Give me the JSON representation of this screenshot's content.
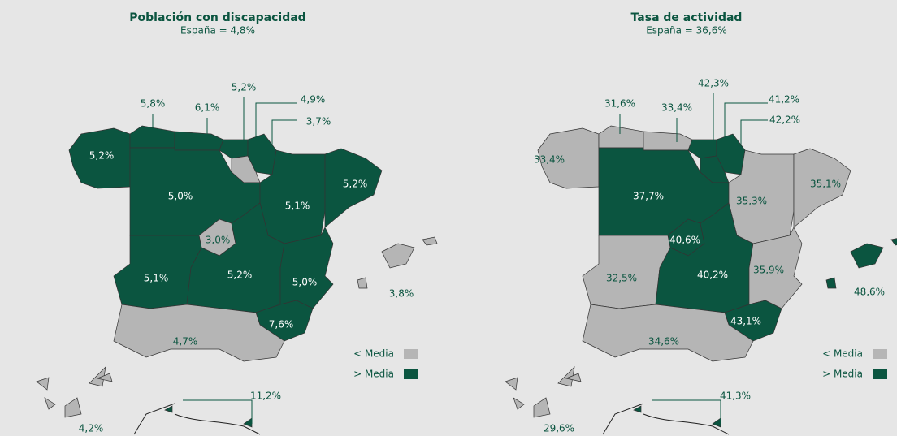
{
  "maps": [
    {
      "title": "Población con discapacidad",
      "subtitle": "España = 4,8%",
      "legend": [
        {
          "label": "< Media",
          "color": "#b5b5b5"
        },
        {
          "label": "> Media",
          "color": "#0b5540"
        }
      ],
      "regions": [
        {
          "label": "5,2%",
          "color": "#0b5540"
        },
        {
          "label": "5,8%",
          "color": "#0b5540"
        },
        {
          "label": "6,1%",
          "color": "#0b5540"
        },
        {
          "label": "5,2%",
          "color": "#0b5540"
        },
        {
          "label": "4,9%",
          "color": "#0b5540"
        },
        {
          "label": "3,7%",
          "color": "#b5b5b5"
        },
        {
          "label": "5,0%",
          "color": "#0b5540"
        },
        {
          "label": "5,1%",
          "color": "#0b5540"
        },
        {
          "label": "5,2%",
          "color": "#0b5540"
        },
        {
          "label": "3,0%",
          "color": "#b5b5b5"
        },
        {
          "label": "5,1%",
          "color": "#0b5540"
        },
        {
          "label": "5,2%",
          "color": "#0b5540"
        },
        {
          "label": "5,0%",
          "color": "#0b5540"
        },
        {
          "label": "7,6%",
          "color": "#0b5540"
        },
        {
          "label": "4,7%",
          "color": "#b5b5b5"
        },
        {
          "label": "3,8%",
          "color": "#b5b5b5"
        },
        {
          "label": "4,2%",
          "color": "#b5b5b5"
        },
        {
          "label": "11,2%",
          "color": "#0b5540"
        }
      ]
    },
    {
      "title": "Tasa de actividad",
      "subtitle": "España = 36,6%",
      "legend": [
        {
          "label": "< Media",
          "color": "#b5b5b5"
        },
        {
          "label": "> Media",
          "color": "#0b5540"
        }
      ],
      "regions": [
        {
          "label": "33,4%",
          "color": "#b5b5b5"
        },
        {
          "label": "31,6%",
          "color": "#b5b5b5"
        },
        {
          "label": "33,4%",
          "color": "#b5b5b5"
        },
        {
          "label": "42,3%",
          "color": "#0b5540"
        },
        {
          "label": "41,2%",
          "color": "#0b5540"
        },
        {
          "label": "42,2%",
          "color": "#0b5540"
        },
        {
          "label": "37,7%",
          "color": "#0b5540"
        },
        {
          "label": "35,3%",
          "color": "#b5b5b5"
        },
        {
          "label": "35,1%",
          "color": "#b5b5b5"
        },
        {
          "label": "40,6%",
          "color": "#0b5540"
        },
        {
          "label": "32,5%",
          "color": "#b5b5b5"
        },
        {
          "label": "40,2%",
          "color": "#0b5540"
        },
        {
          "label": "35,9%",
          "color": "#b5b5b5"
        },
        {
          "label": "43,1%",
          "color": "#0b5540"
        },
        {
          "label": "34,6%",
          "color": "#b5b5b5"
        },
        {
          "label": "48,6%",
          "color": "#0b5540"
        },
        {
          "label": "29,6%",
          "color": "#b5b5b5"
        },
        {
          "label": "41,3%",
          "color": "#0b5540"
        }
      ]
    }
  ]
}
